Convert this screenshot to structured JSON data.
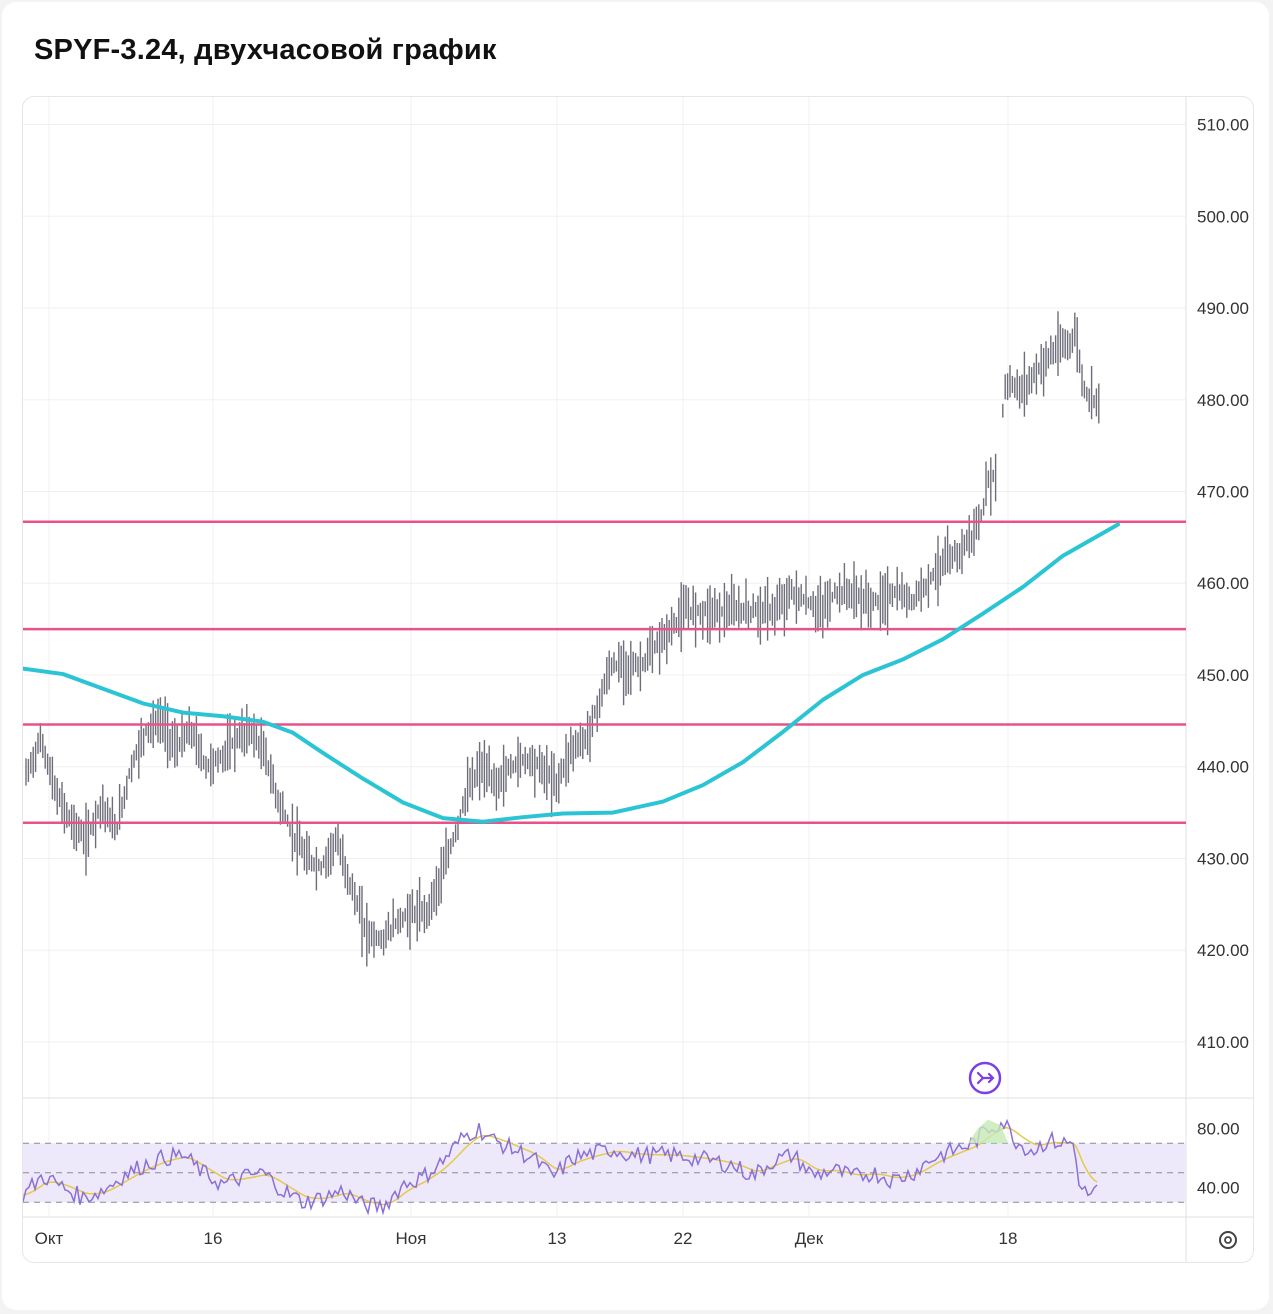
{
  "title": "SPYF-3.24, двухчасовой график",
  "chart_data": {
    "type": "candlestick",
    "title": "SPYF-3.24, двухчасовой график",
    "price_axis": {
      "range": [
        404,
        513
      ],
      "ticks": [
        "510.00",
        "500.00",
        "490.00",
        "480.00",
        "470.00",
        "460.00",
        "450.00",
        "440.00",
        "430.00",
        "420.00",
        "410.00"
      ]
    },
    "time_axis": {
      "labels": [
        "Окт",
        "16",
        "Ноя",
        "13",
        "22",
        "Дек",
        "18"
      ]
    },
    "horizontal_levels": [
      466.7,
      455.0,
      444.6,
      433.9
    ],
    "level_color": "#e8528a",
    "moving_average": {
      "color": "#2bc4d4",
      "points": [
        [
          0,
          450.7
        ],
        [
          40,
          450.1
        ],
        [
          80,
          448.5
        ],
        [
          120,
          446.9
        ],
        [
          160,
          445.9
        ],
        [
          200,
          445.5
        ],
        [
          240,
          444.9
        ],
        [
          270,
          443.7
        ],
        [
          300,
          441.5
        ],
        [
          340,
          438.7
        ],
        [
          380,
          436.1
        ],
        [
          420,
          434.4
        ],
        [
          460,
          434.0
        ],
        [
          500,
          434.5
        ],
        [
          540,
          434.9
        ],
        [
          590,
          435.0
        ],
        [
          640,
          436.2
        ],
        [
          680,
          438.0
        ],
        [
          720,
          440.5
        ],
        [
          760,
          443.8
        ],
        [
          800,
          447.3
        ],
        [
          840,
          450.0
        ],
        [
          880,
          451.7
        ],
        [
          920,
          453.9
        ],
        [
          960,
          456.7
        ],
        [
          1000,
          459.6
        ],
        [
          1040,
          463.0
        ],
        [
          1095,
          466.4
        ]
      ]
    },
    "price_path": [
      [
        0,
        439
      ],
      [
        15,
        443
      ],
      [
        30,
        437
      ],
      [
        45,
        434
      ],
      [
        60,
        432
      ],
      [
        75,
        436
      ],
      [
        90,
        433
      ],
      [
        105,
        440
      ],
      [
        120,
        444
      ],
      [
        135,
        445
      ],
      [
        150,
        442
      ],
      [
        165,
        444
      ],
      [
        180,
        440
      ],
      [
        195,
        441
      ],
      [
        210,
        443
      ],
      [
        225,
        444
      ],
      [
        240,
        441
      ],
      [
        250,
        437
      ],
      [
        265,
        433
      ],
      [
        280,
        430
      ],
      [
        295,
        429
      ],
      [
        310,
        432
      ],
      [
        325,
        427
      ],
      [
        340,
        422
      ],
      [
        355,
        421
      ],
      [
        370,
        423
      ],
      [
        385,
        424
      ],
      [
        400,
        424
      ],
      [
        415,
        428
      ],
      [
        430,
        433
      ],
      [
        440,
        437
      ],
      [
        455,
        440
      ],
      [
        470,
        438
      ],
      [
        485,
        440
      ],
      [
        500,
        441
      ],
      [
        515,
        440
      ],
      [
        530,
        438
      ],
      [
        545,
        442
      ],
      [
        560,
        443
      ],
      [
        570,
        446
      ],
      [
        585,
        451
      ],
      [
        600,
        451
      ],
      [
        615,
        451
      ],
      [
        630,
        453
      ],
      [
        645,
        455
      ],
      [
        660,
        457
      ],
      [
        675,
        457
      ],
      [
        690,
        457
      ],
      [
        705,
        457
      ],
      [
        720,
        457
      ],
      [
        735,
        457
      ],
      [
        750,
        457
      ],
      [
        765,
        459
      ],
      [
        780,
        458
      ],
      [
        795,
        457
      ],
      [
        810,
        459
      ],
      [
        825,
        459
      ],
      [
        840,
        458
      ],
      [
        855,
        458
      ],
      [
        870,
        459
      ],
      [
        885,
        458
      ],
      [
        900,
        460
      ],
      [
        915,
        462
      ],
      [
        930,
        463
      ],
      [
        945,
        465
      ],
      [
        955,
        467
      ],
      [
        962,
        471
      ],
      [
        970,
        472
      ],
      [
        980,
        482
      ],
      [
        995,
        481
      ],
      [
        1010,
        483
      ],
      [
        1025,
        485
      ],
      [
        1040,
        486
      ],
      [
        1050,
        487
      ],
      [
        1058,
        481
      ],
      [
        1068,
        480
      ],
      [
        1078,
        481
      ],
      [
        1088,
        482
      ],
      [
        1095,
        481
      ]
    ],
    "rsi": {
      "range": [
        20,
        100
      ],
      "ticks": [
        "80.00",
        "40.00"
      ],
      "upper": 70,
      "lower": 30,
      "color": "#8a6fd6",
      "signal_color": "#e6c84a",
      "points": [
        [
          0,
          35
        ],
        [
          20,
          48
        ],
        [
          40,
          40
        ],
        [
          60,
          33
        ],
        [
          80,
          38
        ],
        [
          100,
          48
        ],
        [
          120,
          55
        ],
        [
          140,
          60
        ],
        [
          160,
          62
        ],
        [
          180,
          50
        ],
        [
          200,
          42
        ],
        [
          220,
          47
        ],
        [
          240,
          50
        ],
        [
          260,
          38
        ],
        [
          280,
          30
        ],
        [
          300,
          33
        ],
        [
          320,
          38
        ],
        [
          340,
          28
        ],
        [
          360,
          27
        ],
        [
          380,
          42
        ],
        [
          400,
          47
        ],
        [
          420,
          58
        ],
        [
          440,
          74
        ],
        [
          455,
          80
        ],
        [
          470,
          72
        ],
        [
          490,
          66
        ],
        [
          510,
          60
        ],
        [
          530,
          47
        ],
        [
          550,
          60
        ],
        [
          570,
          63
        ],
        [
          590,
          66
        ],
        [
          610,
          62
        ],
        [
          630,
          62
        ],
        [
          650,
          62
        ],
        [
          670,
          60
        ],
        [
          690,
          58
        ],
        [
          710,
          55
        ],
        [
          730,
          48
        ],
        [
          750,
          58
        ],
        [
          770,
          62
        ],
        [
          790,
          48
        ],
        [
          810,
          52
        ],
        [
          830,
          47
        ],
        [
          850,
          50
        ],
        [
          870,
          45
        ],
        [
          890,
          50
        ],
        [
          910,
          60
        ],
        [
          930,
          65
        ],
        [
          950,
          70
        ],
        [
          965,
          80
        ],
        [
          980,
          85
        ],
        [
          995,
          70
        ],
        [
          1010,
          65
        ],
        [
          1025,
          72
        ],
        [
          1040,
          70
        ],
        [
          1050,
          70
        ],
        [
          1058,
          38
        ],
        [
          1068,
          35
        ],
        [
          1078,
          40
        ],
        [
          1088,
          45
        ],
        [
          1095,
          42
        ]
      ]
    },
    "event_marker_icon": "arrow-right-circle-icon",
    "settings_icon": "gear-icon"
  }
}
